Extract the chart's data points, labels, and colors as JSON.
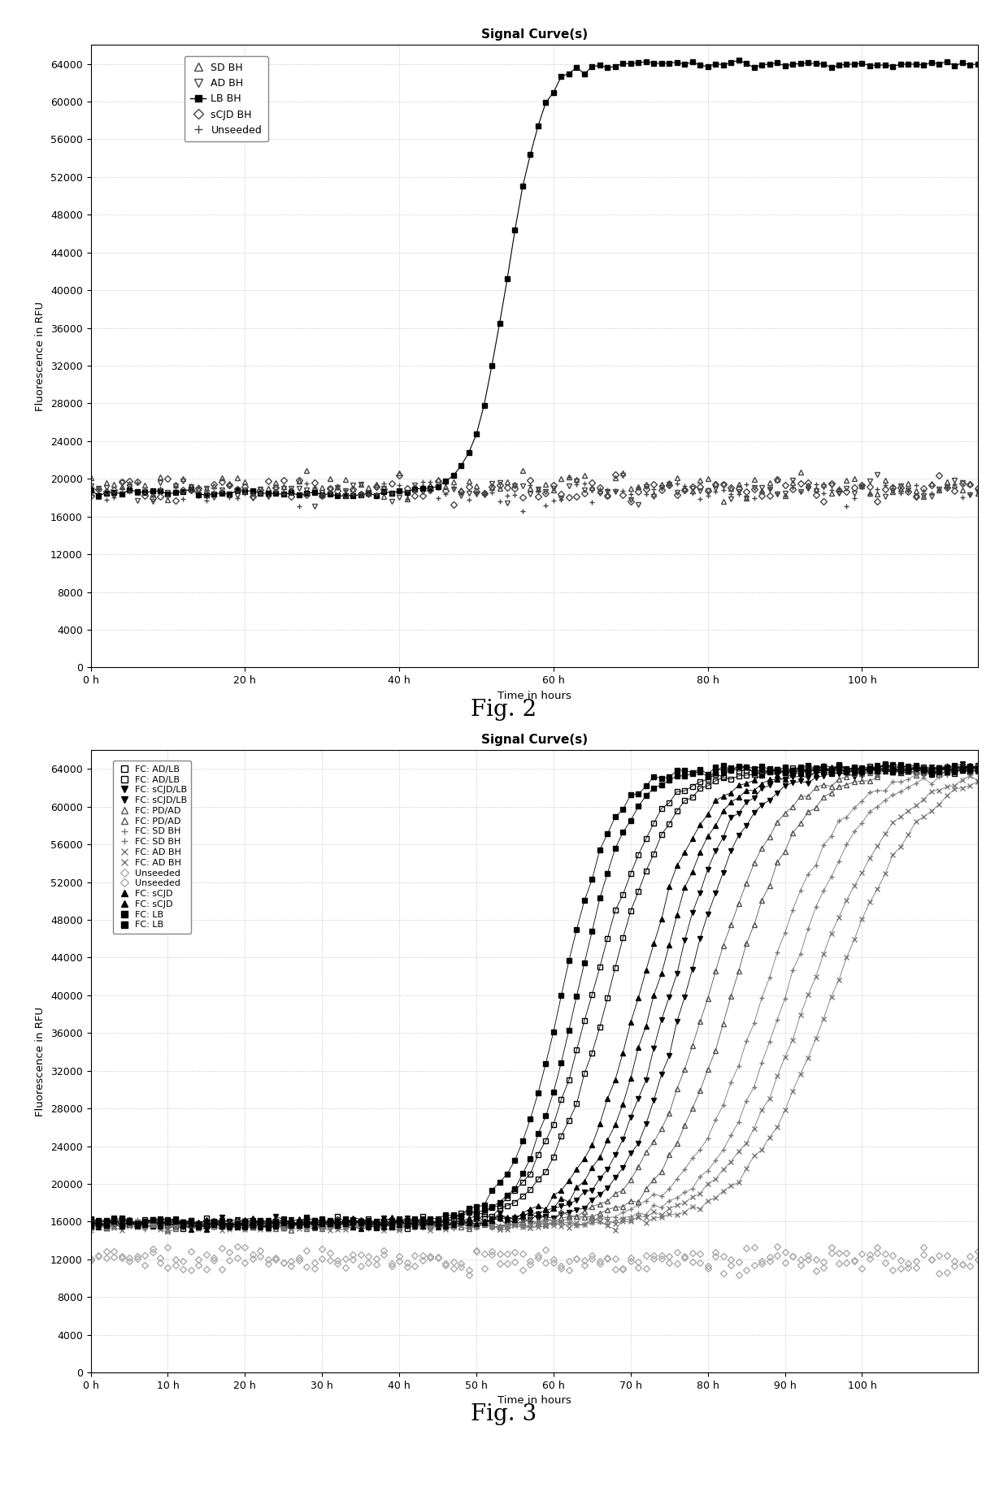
{
  "fig2": {
    "title": "Signal Curve(s)",
    "xlabel": "Time in hours",
    "ylabel": "Fluorescence in RFU",
    "xlim": [
      0,
      115
    ],
    "ylim": [
      0,
      66000
    ],
    "yticks": [
      0,
      4000,
      8000,
      12000,
      16000,
      20000,
      24000,
      28000,
      32000,
      36000,
      40000,
      44000,
      48000,
      52000,
      56000,
      60000,
      64000
    ],
    "xticks": [
      0,
      20,
      40,
      60,
      80,
      100
    ],
    "xtick_labels": [
      "0 h",
      "20 h",
      "40 h",
      "60 h",
      "80 h",
      "100 h"
    ],
    "lb_midpoint": 54,
    "lb_max": 64000,
    "lb_baseline": 18500,
    "lb_steepness": 0.45,
    "series": [
      {
        "label": "SD BH",
        "marker": "^",
        "filled": false,
        "baseline": 19200,
        "noise": 700,
        "sigmoid": false
      },
      {
        "label": "AD BH",
        "marker": "v",
        "filled": false,
        "baseline": 18800,
        "noise": 700,
        "sigmoid": false
      },
      {
        "label": "LB BH",
        "marker": "s",
        "filled": true,
        "baseline": 18500,
        "noise": 200,
        "sigmoid": true
      },
      {
        "label": "sCJD BH",
        "marker": "D",
        "filled": false,
        "baseline": 19000,
        "noise": 700,
        "sigmoid": false
      },
      {
        "label": "Unseeded",
        "marker": "+",
        "filled": false,
        "baseline": 18600,
        "noise": 600,
        "sigmoid": false
      }
    ]
  },
  "fig3": {
    "title": "Signal Curve(s)",
    "xlabel": "Time in hours",
    "ylabel": "Fluorescence in RFU",
    "xlim": [
      0,
      115
    ],
    "ylim": [
      0,
      66000
    ],
    "yticks": [
      0,
      4000,
      8000,
      12000,
      16000,
      20000,
      24000,
      28000,
      32000,
      36000,
      40000,
      44000,
      48000,
      52000,
      56000,
      60000,
      64000
    ],
    "xticks": [
      0,
      10,
      20,
      30,
      40,
      50,
      60,
      70,
      80,
      90,
      100
    ],
    "xtick_labels": [
      "0 h",
      "10 h",
      "20 h",
      "30 h",
      "40 h",
      "50 h",
      "60 h",
      "70 h",
      "80 h",
      "90 h",
      "100 h"
    ],
    "series": [
      {
        "label": "FC: AD/LB",
        "marker": "s",
        "filled": false,
        "color": "#000000",
        "baseline": 15800,
        "noise": 250,
        "midpoint": 65,
        "max": 64000,
        "steepness": 0.25
      },
      {
        "label": "FC: AD/LB",
        "marker": "s",
        "filled": false,
        "color": "#000000",
        "baseline": 15800,
        "noise": 250,
        "midpoint": 67,
        "max": 64000,
        "steepness": 0.25
      },
      {
        "label": "FC: sCJD/LB",
        "marker": "v",
        "filled": true,
        "color": "#000000",
        "baseline": 15900,
        "noise": 250,
        "midpoint": 75,
        "max": 64000,
        "steepness": 0.25
      },
      {
        "label": "FC: sCJD/LB",
        "marker": "v",
        "filled": true,
        "color": "#000000",
        "baseline": 15900,
        "noise": 250,
        "midpoint": 77,
        "max": 64000,
        "steepness": 0.25
      },
      {
        "label": "FC: PD/AD",
        "marker": "^",
        "filled": false,
        "color": "#555555",
        "baseline": 15700,
        "noise": 250,
        "midpoint": 80,
        "max": 64000,
        "steepness": 0.22
      },
      {
        "label": "FC: PD/AD",
        "marker": "^",
        "filled": false,
        "color": "#555555",
        "baseline": 15700,
        "noise": 250,
        "midpoint": 83,
        "max": 64000,
        "steepness": 0.22
      },
      {
        "label": "FC: SD BH",
        "marker": "+",
        "filled": false,
        "color": "#777777",
        "baseline": 15600,
        "noise": 250,
        "midpoint": 87,
        "max": 64000,
        "steepness": 0.2
      },
      {
        "label": "FC: SD BH",
        "marker": "+",
        "filled": false,
        "color": "#777777",
        "baseline": 15600,
        "noise": 250,
        "midpoint": 90,
        "max": 64000,
        "steepness": 0.2
      },
      {
        "label": "FC: AD BH",
        "marker": "x",
        "filled": false,
        "color": "#777777",
        "baseline": 15500,
        "noise": 250,
        "midpoint": 93,
        "max": 64000,
        "steepness": 0.18
      },
      {
        "label": "FC: AD BH",
        "marker": "x",
        "filled": false,
        "color": "#777777",
        "baseline": 15500,
        "noise": 250,
        "midpoint": 96,
        "max": 64000,
        "steepness": 0.18
      },
      {
        "label": "Unseeded",
        "marker": "D",
        "filled": false,
        "color": "#aaaaaa",
        "baseline": 12000,
        "noise": 600,
        "midpoint": null,
        "max": null,
        "steepness": null
      },
      {
        "label": "Unseeded",
        "marker": "D",
        "filled": false,
        "color": "#aaaaaa",
        "baseline": 12000,
        "noise": 600,
        "midpoint": null,
        "max": null,
        "steepness": null
      },
      {
        "label": "FC: sCJD",
        "marker": "^",
        "filled": true,
        "color": "#000000",
        "baseline": 15800,
        "noise": 250,
        "midpoint": 71,
        "max": 64000,
        "steepness": 0.25
      },
      {
        "label": "FC: sCJD",
        "marker": "^",
        "filled": true,
        "color": "#000000",
        "baseline": 15800,
        "noise": 250,
        "midpoint": 73,
        "max": 64000,
        "steepness": 0.25
      },
      {
        "label": "FC: LB",
        "marker": "s",
        "filled": true,
        "color": "#000000",
        "baseline": 15900,
        "noise": 250,
        "midpoint": 61,
        "max": 64000,
        "steepness": 0.3
      },
      {
        "label": "FC: LB",
        "marker": "s",
        "filled": true,
        "color": "#000000",
        "baseline": 15900,
        "noise": 250,
        "midpoint": 63,
        "max": 64000,
        "steepness": 0.3
      }
    ]
  },
  "fig2_label": "Fig. 2",
  "fig3_label": "Fig. 3",
  "background_color": "#ffffff"
}
